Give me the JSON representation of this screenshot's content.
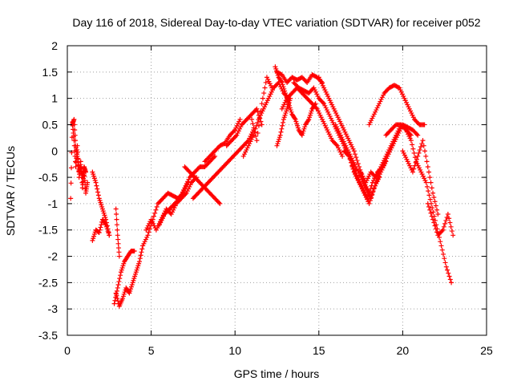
{
  "chart_data": {
    "type": "scatter",
    "title": "Day 116 of 2018, Sidereal Day-to-day VTEC variation (SDTVAR) for receiver p052",
    "xlabel": "GPS time / hours",
    "ylabel": "SDTVAR / TECUs",
    "xlim": [
      0,
      25
    ],
    "ylim": [
      -3.5,
      2
    ],
    "xticks": [
      0,
      5,
      10,
      15,
      20,
      25
    ],
    "xtick_labels": [
      "0",
      "5",
      "10",
      "15",
      "20",
      "25"
    ],
    "yticks": [
      -3.5,
      -3,
      -2.5,
      -2,
      -1.5,
      -1,
      -0.5,
      0,
      0.5,
      1,
      1.5,
      2
    ],
    "ytick_labels": [
      "-3.5",
      "-3",
      "-2.5",
      "-2",
      "-1.5",
      "-1",
      "-0.5",
      "0",
      "0.5",
      "1",
      "1.5",
      "2"
    ],
    "grid": true,
    "marker": "+",
    "marker_color": "#ff0000",
    "series": [
      {
        "name": "p052",
        "arcs": [
          {
            "x": [
              0.2,
              0.3,
              0.4,
              0.5,
              0.6,
              0.7,
              0.8,
              0.9,
              1.0,
              1.1,
              1.2
            ],
            "y": [
              -0.9,
              0.55,
              0.2,
              -0.3,
              0.1,
              -0.5,
              -0.2,
              -0.7,
              -0.4,
              -0.8,
              -0.6
            ]
          },
          {
            "x": [
              0.3,
              0.4,
              0.5,
              0.6,
              0.7,
              0.8,
              0.9,
              1.0,
              1.1
            ],
            "y": [
              0.5,
              0.6,
              0.1,
              -0.1,
              -0.4,
              -0.3,
              -0.5,
              -0.3,
              -0.4
            ]
          },
          {
            "x": [
              1.5,
              1.7,
              1.9,
              2.1,
              2.3,
              2.5
            ],
            "y": [
              -1.7,
              -1.5,
              -1.55,
              -1.3,
              -1.4,
              -1.6
            ]
          },
          {
            "x": [
              1.5,
              1.7,
              1.9,
              2.1,
              2.3,
              2.5
            ],
            "y": [
              -0.4,
              -0.6,
              -0.9,
              -1.1,
              -1.3,
              -1.6
            ]
          },
          {
            "x": [
              2.8,
              3.0,
              3.2,
              3.4,
              3.6,
              3.8,
              4.0
            ],
            "y": [
              -2.9,
              -2.6,
              -2.3,
              -2.1,
              -2.0,
              -1.9,
              -1.9
            ]
          },
          {
            "x": [
              2.9,
              3.1,
              3.3,
              3.5,
              3.7,
              3.9,
              4.1,
              4.3,
              4.5
            ],
            "y": [
              -2.7,
              -2.95,
              -2.8,
              -2.6,
              -2.7,
              -2.5,
              -2.3,
              -2.1,
              -1.8
            ]
          },
          {
            "x": [
              2.9,
              3.0,
              3.1
            ],
            "y": [
              -1.1,
              -1.6,
              -2.0
            ]
          },
          {
            "x": [
              4.5,
              4.8,
              5.1,
              5.4,
              5.7,
              6.0,
              6.3,
              6.6,
              6.9,
              7.2
            ],
            "y": [
              -1.8,
              -1.6,
              -1.3,
              -1.0,
              -0.9,
              -0.8,
              -0.85,
              -0.9,
              -0.8,
              -0.6
            ]
          },
          {
            "x": [
              4.7,
              5.0,
              5.3,
              5.6,
              5.9,
              6.2,
              6.5,
              6.8,
              7.1,
              7.4,
              7.7
            ],
            "y": [
              -1.5,
              -1.3,
              -1.5,
              -1.3,
              -1.1,
              -1.2,
              -1.0,
              -0.9,
              -0.8,
              -0.6,
              -0.5
            ]
          },
          {
            "x": [
              5.5,
              5.8,
              6.1,
              6.4,
              6.7,
              7.0,
              7.3,
              7.6,
              7.9,
              8.2,
              8.5,
              8.8
            ],
            "y": [
              -1.4,
              -1.2,
              -1.1,
              -1.0,
              -0.9,
              -0.7,
              -0.5,
              -0.4,
              -0.3,
              -0.3,
              -0.2,
              -0.1
            ]
          },
          {
            "x": [
              7.0,
              7.3,
              7.6,
              7.9,
              8.2,
              8.5,
              8.8,
              9.1
            ],
            "y": [
              -0.3,
              -0.4,
              -0.5,
              -0.6,
              -0.7,
              -0.8,
              -0.9,
              -1.0
            ]
          },
          {
            "x": [
              7.5,
              7.8,
              8.1,
              8.4,
              8.7,
              9.0,
              9.3,
              9.6,
              9.9,
              10.2,
              10.5,
              10.8,
              11.1
            ],
            "y": [
              -0.9,
              -0.8,
              -0.7,
              -0.6,
              -0.5,
              -0.4,
              -0.3,
              -0.2,
              -0.1,
              0.0,
              0.1,
              0.2,
              0.4
            ]
          },
          {
            "x": [
              8.2,
              8.5,
              8.8,
              9.1,
              9.4,
              9.7,
              10.0,
              10.3
            ],
            "y": [
              -0.2,
              -0.1,
              0.0,
              0.1,
              0.15,
              0.3,
              0.4,
              0.6
            ]
          },
          {
            "x": [
              9.5,
              9.8,
              10.1,
              10.4,
              10.7,
              11.0,
              11.3,
              11.6
            ],
            "y": [
              0.1,
              0.2,
              0.3,
              0.5,
              0.6,
              0.7,
              0.8,
              0.5
            ]
          },
          {
            "x": [
              10.5,
              10.8,
              11.1,
              11.4,
              11.7,
              12.0,
              12.3,
              12.6,
              12.9,
              13.2
            ],
            "y": [
              -0.1,
              0.1,
              0.3,
              0.6,
              0.8,
              1.0,
              1.2,
              1.3,
              1.1,
              1.0
            ]
          },
          {
            "x": [
              11.0,
              11.3,
              11.6,
              11.9,
              12.2
            ],
            "y": [
              0.6,
              0.2,
              0.9,
              1.4,
              1.2
            ]
          },
          {
            "x": [
              12.4,
              12.6,
              12.8,
              13.0,
              13.2,
              13.4,
              13.6,
              13.8,
              14.0,
              14.2,
              14.4,
              14.6,
              14.8
            ],
            "y": [
              1.6,
              1.4,
              1.3,
              1.1,
              0.9,
              0.7,
              0.6,
              0.4,
              0.3,
              0.5,
              0.6,
              0.8,
              0.9
            ]
          },
          {
            "x": [
              12.5,
              12.8,
              13.1,
              13.4,
              13.7,
              14.0,
              14.3,
              14.6,
              14.9,
              15.2
            ],
            "y": [
              1.5,
              1.45,
              1.3,
              1.4,
              1.35,
              1.4,
              1.3,
              1.45,
              1.4,
              1.3
            ]
          },
          {
            "x": [
              12.5,
              12.7,
              12.9,
              13.1,
              13.3
            ],
            "y": [
              0.1,
              0.3,
              0.6,
              0.8,
              1.0
            ]
          },
          {
            "x": [
              12.8,
              13.1,
              13.4,
              13.7,
              14.0,
              14.3,
              14.6,
              14.9,
              15.2,
              15.5,
              15.8,
              16.1,
              16.4
            ],
            "y": [
              0.8,
              1.0,
              1.1,
              1.2,
              1.1,
              1.0,
              0.9,
              0.8,
              0.6,
              0.4,
              0.2,
              0.1,
              -0.1
            ]
          },
          {
            "x": [
              13.5,
              13.8,
              14.1,
              14.4,
              14.7,
              15.0,
              15.3,
              15.6,
              15.9,
              16.2,
              16.5,
              16.8,
              17.1,
              17.4
            ],
            "y": [
              1.3,
              1.2,
              1.15,
              1.1,
              1.2,
              1.0,
              0.9,
              0.7,
              0.5,
              0.3,
              0.1,
              -0.1,
              -0.3,
              -0.6
            ]
          },
          {
            "x": [
              15.0,
              15.3,
              15.6,
              15.9,
              16.2,
              16.5,
              16.8,
              17.1,
              17.4,
              17.7,
              18.0
            ],
            "y": [
              1.4,
              1.2,
              1.0,
              0.8,
              0.6,
              0.4,
              0.2,
              0.0,
              -0.3,
              -0.6,
              -0.8
            ]
          },
          {
            "x": [
              16.0,
              16.3,
              16.6,
              16.9,
              17.2,
              17.5,
              17.8,
              18.1,
              18.4,
              18.7,
              19.0
            ],
            "y": [
              0.5,
              0.3,
              0.1,
              -0.1,
              -0.3,
              -0.5,
              -0.7,
              -0.9,
              -0.6,
              -0.4,
              -0.2
            ]
          },
          {
            "x": [
              16.5,
              16.8,
              17.1,
              17.4,
              17.7,
              18.0,
              18.3,
              18.6
            ],
            "y": [
              0.0,
              -0.1,
              -0.4,
              -0.6,
              -0.8,
              -1.0,
              -0.7,
              -0.5
            ]
          },
          {
            "x": [
              17.0,
              17.3,
              17.6,
              17.9,
              18.2,
              18.5,
              18.8,
              19.1,
              19.4,
              19.7,
              20.0,
              20.3,
              20.6,
              20.9
            ],
            "y": [
              -0.3,
              -0.5,
              -0.7,
              -0.9,
              -0.6,
              -0.4,
              -0.3,
              -0.1,
              0.1,
              0.3,
              0.5,
              0.45,
              0.4,
              0.3
            ]
          },
          {
            "x": [
              17.5,
              17.8,
              18.1,
              18.4,
              18.7,
              19.0,
              19.3,
              19.6,
              19.9,
              20.2,
              20.5
            ],
            "y": [
              -0.4,
              -0.6,
              -0.4,
              -0.5,
              -0.3,
              -0.1,
              0.1,
              0.3,
              0.5,
              0.4,
              0.3
            ]
          },
          {
            "x": [
              18.0,
              18.3,
              18.6,
              18.9,
              19.2,
              19.5,
              19.8,
              20.1,
              20.4,
              20.7,
              21.0,
              21.3
            ],
            "y": [
              0.5,
              0.7,
              0.9,
              1.1,
              1.2,
              1.25,
              1.2,
              1.0,
              0.8,
              0.6,
              0.5,
              0.5
            ]
          },
          {
            "x": [
              19.0,
              19.3,
              19.6,
              19.9,
              20.2,
              20.5,
              20.8,
              21.1,
              21.4,
              21.7,
              22.0,
              22.3,
              22.6,
              22.9
            ],
            "y": [
              0.3,
              0.4,
              0.5,
              0.5,
              0.4,
              0.2,
              -0.2,
              -0.4,
              -0.6,
              -1.0,
              -1.4,
              -1.8,
              -2.2,
              -2.5
            ]
          },
          {
            "x": [
              20.0,
              20.3,
              20.6,
              20.9,
              21.2,
              21.5,
              21.8,
              22.1
            ],
            "y": [
              0.0,
              -0.2,
              -0.4,
              -0.1,
              0.2,
              -0.3,
              -0.8,
              -1.2
            ]
          },
          {
            "x": [
              21.5,
              21.8,
              22.1,
              22.4,
              22.7,
              23.0
            ],
            "y": [
              -1.0,
              -1.3,
              -1.6,
              -1.5,
              -1.2,
              -1.6
            ]
          }
        ]
      }
    ]
  }
}
